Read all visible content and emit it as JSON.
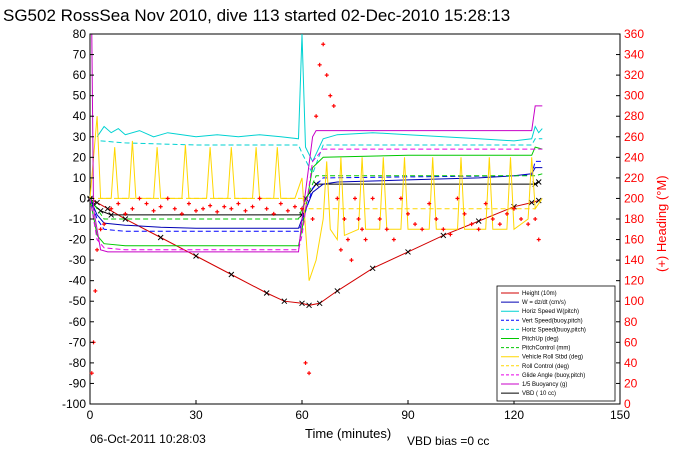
{
  "chart_data": {
    "type": "line",
    "title": "SG502 RossSea Nov 2010, dive 113 started 02-Dec-2010 15:28:13",
    "xlabel": "Time (minutes)",
    "ylabel_right": "(+) Heading (°M)",
    "xlim": [
      0,
      150
    ],
    "ylim": [
      -100,
      80
    ],
    "ylim_right": [
      0,
      360
    ],
    "x_ticks": [
      "0",
      "30",
      "60",
      "90",
      "120",
      "150"
    ],
    "y_ticks": [
      "80",
      "70",
      "60",
      "50",
      "40",
      "30",
      "20",
      "10",
      "0",
      "-10",
      "-20",
      "-30",
      "-40",
      "-50",
      "-60",
      "-70",
      "-80",
      "-90",
      "-100"
    ],
    "y_ticks_right": [
      "360",
      "340",
      "320",
      "300",
      "280",
      "260",
      "240",
      "220",
      "200",
      "180",
      "160",
      "140",
      "120",
      "100",
      "80",
      "60",
      "40",
      "20",
      "0"
    ],
    "footer_date": "06-Oct-2011 10:28:03",
    "footer_bias": "VBD bias =0 cc",
    "legend": [
      {
        "label": "Height (10m)",
        "color": "#d20000",
        "style": "solid"
      },
      {
        "label": "W = dz/dt (cm/s)",
        "color": "#0000b4",
        "style": "solid"
      },
      {
        "label": "Horiz Speed W(pitch)",
        "color": "#00d2d2",
        "style": "solid"
      },
      {
        "label": "Vert Speed(buoy,pitch)",
        "color": "#0000ff",
        "style": "dashed"
      },
      {
        "label": "Horiz Speed(buoy,pitch)",
        "color": "#00d2d2",
        "style": "dashed"
      },
      {
        "label": "PitchUp (deg)",
        "color": "#00c800",
        "style": "solid"
      },
      {
        "label": "PitchControl (mm)",
        "color": "#00c800",
        "style": "dashed"
      },
      {
        "label": "Vehicle Roll Stbd (deg)",
        "color": "#ffd700",
        "style": "solid"
      },
      {
        "label": "Roll Control (deg)",
        "color": "#ffd700",
        "style": "dashed"
      },
      {
        "label": "Glide Angle (buoy,pitch)",
        "color": "#e600e6",
        "style": "dashed"
      },
      {
        "label": "1/5 Buoyancy (g)",
        "color": "#c800c8",
        "style": "solid"
      },
      {
        "label": "VBD ( 10 cc)",
        "color": "#000000",
        "style": "solid"
      }
    ],
    "series": [
      {
        "name": "Height (10m)",
        "color": "#d20000",
        "x": [
          0,
          2,
          5,
          10,
          20,
          30,
          40,
          50,
          55,
          60,
          62,
          65,
          70,
          80,
          90,
          100,
          110,
          120,
          125,
          127
        ],
        "y": [
          -0.5,
          -2,
          -5,
          -10,
          -19,
          -28,
          -37,
          -46,
          -50,
          -51,
          -52,
          -51,
          -45,
          -34,
          -26,
          -18,
          -11,
          -4,
          -2,
          -1
        ]
      },
      {
        "name": "VBD ( 10 cc)",
        "color": "#000000",
        "x": [
          0,
          1,
          3,
          6,
          60,
          61,
          64,
          126,
          127
        ],
        "y": [
          0,
          -3,
          -6,
          -8,
          -8,
          0,
          7,
          7,
          8
        ]
      },
      {
        "name": "W = dz/dt (cm/s)",
        "color": "#0000b4",
        "x": [
          0,
          2,
          4,
          10,
          20,
          30,
          40,
          50,
          59,
          60,
          63,
          66,
          70,
          80,
          90,
          100,
          110,
          120,
          125,
          126,
          128
        ],
        "y": [
          0,
          -8,
          -12,
          -13,
          -14,
          -14.5,
          -14.5,
          -14.5,
          -14.5,
          -10,
          3,
          7,
          8,
          8.5,
          9,
          9.5,
          10,
          11,
          12,
          15,
          15
        ]
      },
      {
        "name": "Vert Speed(buoy,pitch)",
        "color": "#0000ff",
        "x": [
          0,
          2,
          4,
          10,
          30,
          59,
          60,
          63,
          66,
          90,
          120,
          125,
          126,
          128
        ],
        "y": [
          0,
          -10,
          -15,
          -16,
          -16,
          -16,
          -12,
          5,
          10,
          10.5,
          11,
          11.5,
          18,
          18
        ]
      },
      {
        "name": "Horiz Speed W(pitch)",
        "color": "#00d2d2",
        "x": [
          2,
          4,
          6,
          8,
          10,
          14,
          18,
          22,
          26,
          30,
          36,
          42,
          48,
          54,
          59,
          60,
          61,
          63,
          66,
          70,
          80,
          90,
          100,
          110,
          120,
          125,
          126,
          127,
          128
        ],
        "y": [
          30,
          35,
          32,
          34,
          31,
          33,
          30,
          32,
          31,
          30,
          31,
          30,
          31,
          30,
          29,
          80,
          25,
          18,
          29,
          31,
          32,
          31,
          30,
          29,
          28,
          29,
          35,
          32,
          34
        ]
      },
      {
        "name": "Horiz Speed(buoy,pitch)",
        "color": "#00d2d2",
        "x": [
          3,
          10,
          30,
          59,
          60,
          63,
          66,
          90,
          120,
          125,
          126,
          128
        ],
        "y": [
          28,
          27,
          26,
          26,
          22,
          12,
          26,
          26,
          26,
          26,
          29,
          29
        ]
      },
      {
        "name": "PitchUp (deg)",
        "color": "#00c800",
        "x": [
          0,
          2,
          4,
          10,
          30,
          59,
          60,
          63,
          66,
          90,
          120,
          125,
          126,
          128
        ],
        "y": [
          0,
          -18,
          -22,
          -23,
          -23,
          -23,
          -15,
          15,
          20,
          21,
          21,
          21,
          25,
          24
        ]
      },
      {
        "name": "PitchControl (mm)",
        "color": "#00c800",
        "x": [
          0,
          4,
          10,
          59,
          60,
          64,
          126,
          128
        ],
        "y": [
          0,
          -10,
          -10,
          -10,
          -5,
          11,
          11,
          12
        ]
      },
      {
        "name": "Vehicle Roll Stbd (deg)",
        "color": "#ffd700",
        "x": [
          0,
          2,
          3,
          6,
          7,
          8,
          11,
          12,
          13,
          18,
          19,
          20,
          26,
          27,
          28,
          33,
          34,
          35,
          39,
          40,
          41,
          46,
          47,
          48,
          52,
          53,
          54,
          58,
          60,
          62,
          64,
          66,
          67,
          68,
          70,
          71,
          72,
          76,
          77,
          78,
          82,
          83,
          84,
          88,
          89,
          90,
          96,
          97,
          98,
          104,
          105,
          106,
          112,
          113,
          114,
          118,
          119,
          120,
          124,
          125,
          126,
          128
        ],
        "y": [
          0,
          40,
          0,
          0,
          25,
          0,
          0,
          28,
          0,
          0,
          25,
          0,
          0,
          26,
          0,
          0,
          25,
          0,
          0,
          25,
          0,
          0,
          25,
          0,
          0,
          25,
          0,
          0,
          10,
          -40,
          -30,
          -10,
          18,
          -15,
          -20,
          20,
          -18,
          -15,
          20,
          -15,
          -15,
          20,
          -15,
          -15,
          20,
          -15,
          -15,
          20,
          -15,
          -15,
          20,
          -15,
          -15,
          20,
          -15,
          -15,
          20,
          -15,
          -10,
          20,
          -5,
          0
        ]
      },
      {
        "name": "Roll Control (deg)",
        "color": "#ffd700",
        "x": [
          0,
          60,
          62,
          126,
          128
        ],
        "y": [
          0,
          0,
          -5,
          -5,
          0
        ]
      },
      {
        "name": "Glide Angle (buoy,pitch)",
        "color": "#e600e6",
        "x": [
          0,
          2,
          4,
          10,
          59,
          60,
          63,
          66,
          126,
          128
        ],
        "y": [
          0,
          -20,
          -24,
          -25,
          -25,
          -18,
          18,
          24,
          24,
          24
        ]
      },
      {
        "name": "1/5 Buoyancy (g)",
        "color": "#c800c8",
        "x": [
          0,
          0.5,
          1,
          3,
          5,
          59,
          60,
          63,
          64,
          125,
          126,
          128
        ],
        "y": [
          80,
          80,
          -5,
          -25,
          -26,
          -26,
          -10,
          30,
          33,
          33,
          45,
          45
        ]
      }
    ],
    "heading_points": {
      "name": "Heading",
      "color": "#ff0000",
      "x": [
        0.5,
        1,
        1.5,
        2,
        3,
        4,
        6,
        8,
        10,
        12,
        14,
        16,
        18,
        20,
        22,
        24,
        26,
        28,
        30,
        32,
        34,
        36,
        38,
        40,
        42,
        44,
        46,
        48,
        50,
        52,
        54,
        56,
        58,
        60,
        61,
        62,
        63,
        64,
        65,
        66,
        67,
        68,
        69,
        70,
        71,
        72,
        73,
        74,
        75,
        76,
        77,
        78,
        80,
        82,
        84,
        86,
        88,
        90,
        92,
        94,
        96,
        98,
        100,
        102,
        104,
        106,
        108,
        110,
        112,
        114,
        116,
        118,
        120,
        122,
        124,
        126,
        127
      ],
      "y": [
        30,
        60,
        110,
        150,
        170,
        175,
        190,
        195,
        185,
        190,
        200,
        195,
        188,
        192,
        200,
        190,
        185,
        195,
        188,
        190,
        193,
        187,
        192,
        190,
        195,
        188,
        192,
        200,
        190,
        185,
        195,
        188,
        192,
        190,
        40,
        30,
        180,
        280,
        330,
        350,
        320,
        300,
        290,
        200,
        150,
        180,
        160,
        140,
        200,
        180,
        170,
        160,
        200,
        180,
        170,
        160,
        200,
        185,
        175,
        170,
        195,
        180,
        170,
        165,
        200,
        185,
        175,
        170,
        195,
        180,
        175,
        185,
        190,
        180,
        175,
        180,
        160
      ]
    }
  }
}
